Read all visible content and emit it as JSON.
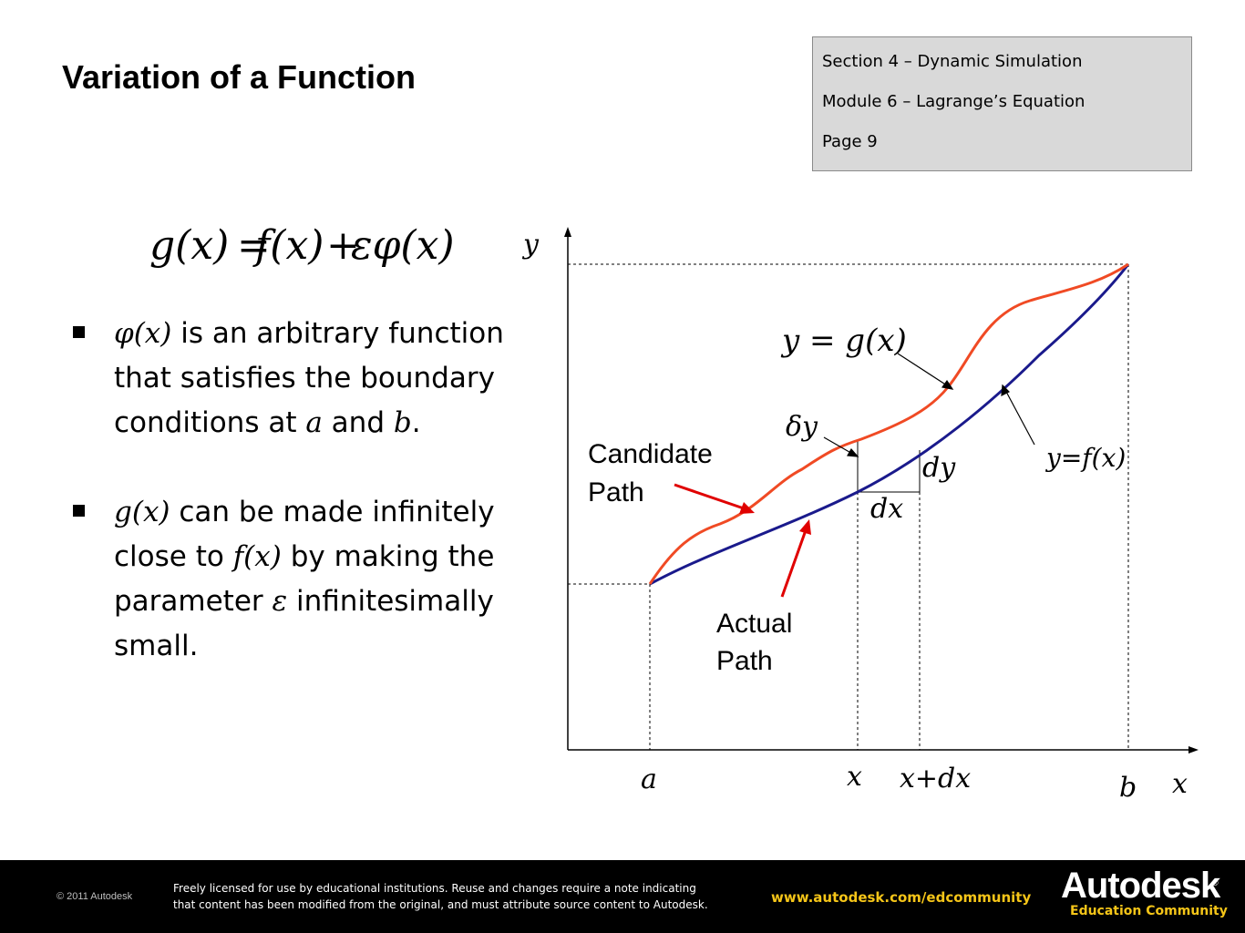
{
  "title": "Variation of a Function",
  "section_box": {
    "line1": "Section 4 – Dynamic Simulation",
    "line2": "Module 6 – Lagrange’s Equation",
    "line3": "Page 9"
  },
  "equation": {
    "lhs": "g(x)",
    "equals": "=",
    "rhs1": "f(x)",
    "plus": "+",
    "rhs2": "εφ(x)"
  },
  "bullets": [
    {
      "math": "φ(x)",
      "t1": " is an arbitrary function that satisfies the boundary conditions at ",
      "m2": "a",
      "t2": " and ",
      "m3": "b",
      "t3": "."
    },
    {
      "math": "g(x)",
      "t1": " can be made infinitely close to ",
      "m2": "f(x)",
      "t2": " by making the parameter ",
      "m3": "ε",
      "t3": " infinitesimally small."
    }
  ],
  "diagram": {
    "y_axis_label": "y",
    "x_axis_label": "x",
    "gx_label": "y = g(x)",
    "fx_label": "y=f(x)",
    "delta_y": "δy",
    "dy": "dy",
    "dx": "dx",
    "candidate_path_line1": "Candidate",
    "candidate_path_line2": "Path",
    "actual_path_line1": "Actual",
    "actual_path_line2": "Path",
    "tick_a": "a",
    "tick_x": "x",
    "tick_xdx": "x+dx",
    "tick_b": "b",
    "colors": {
      "actual": "#1a1a8c",
      "candidate": "#f04a24",
      "arrow_red": "#e00000"
    }
  },
  "footer": {
    "copyright": "© 2011 Autodesk",
    "license_line1": "Freely licensed for use by educational institutions. Reuse and changes require a note indicating",
    "license_line2": "that content has been modified from the original, and must attribute source content to Autodesk.",
    "url": "www.autodesk.com/edcommunity",
    "brand": "Autodesk",
    "brand_reg": "®",
    "brand_sub": "Education Community"
  }
}
